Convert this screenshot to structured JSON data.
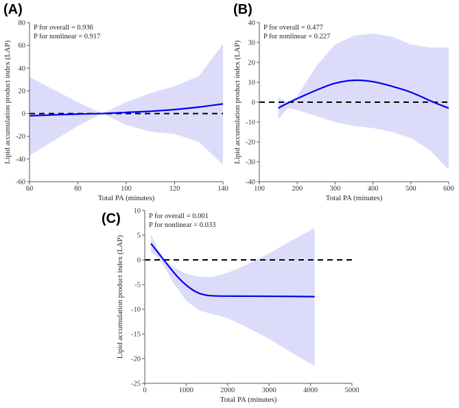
{
  "colors": {
    "line": "#0000ee",
    "band": "#dcdcfa",
    "ref": "#000000",
    "axis": "#555555"
  },
  "chart_data": [
    {
      "type": "line",
      "panel_label": "(A)",
      "xlabel": "Total PA (minutes)",
      "ylabel": "Lipid accumulation product index (LAP)",
      "annotations": [
        "P for overall = 0.936",
        "P for nonlinear = 0.917"
      ],
      "xlim": [
        60,
        140
      ],
      "ylim": [
        -60,
        80
      ],
      "xticks": [
        60,
        80,
        100,
        120,
        140
      ],
      "yticks": [
        -60,
        -40,
        -20,
        0,
        20,
        40,
        60,
        80
      ],
      "reference_y": 0,
      "series": [
        {
          "name": "estimate",
          "x": [
            60,
            70,
            80,
            90,
            100,
            110,
            120,
            130,
            140
          ],
          "y": [
            -2,
            -1.2,
            -0.5,
            0,
            1,
            2,
            3.5,
            5.7,
            8.5
          ]
        },
        {
          "name": "upper_ci",
          "x": [
            60,
            70,
            80,
            90,
            100,
            110,
            120,
            130,
            140
          ],
          "y": [
            32,
            21,
            10,
            0,
            10,
            18,
            24,
            33,
            61
          ]
        },
        {
          "name": "lower_ci",
          "x": [
            60,
            70,
            80,
            90,
            100,
            110,
            120,
            130,
            140
          ],
          "y": [
            -37,
            -24,
            -11,
            0,
            -10,
            -16,
            -18,
            -25,
            -45
          ]
        }
      ]
    },
    {
      "type": "line",
      "panel_label": "(B)",
      "xlabel": "Total PA (minutes)",
      "ylabel": "Lipid accumulation product index (LAP)",
      "annotations": [
        "P for overall = 0.477",
        "P for nonlinear = 0.227"
      ],
      "xlim": [
        100,
        600
      ],
      "ylim": [
        -40,
        40
      ],
      "xticks": [
        100,
        200,
        300,
        400,
        500,
        600
      ],
      "yticks": [
        -40,
        -30,
        -20,
        -10,
        0,
        10,
        20,
        30,
        40
      ],
      "reference_y": 0,
      "series": [
        {
          "name": "estimate",
          "x": [
            150,
            180,
            250,
            300,
            350,
            400,
            450,
            500,
            560,
            600
          ],
          "y": [
            -3,
            0,
            6,
            9.5,
            11,
            10.3,
            8,
            5,
            0,
            -3
          ]
        },
        {
          "name": "upper_ci",
          "x": [
            150,
            175,
            200,
            250,
            300,
            350,
            400,
            450,
            500,
            550,
            600
          ],
          "y": [
            2.5,
            0,
            3,
            18,
            29,
            33.5,
            34.5,
            33,
            29,
            27.5,
            27.5
          ]
        },
        {
          "name": "lower_ci",
          "x": [
            150,
            175,
            200,
            250,
            300,
            350,
            400,
            450,
            500,
            550,
            600
          ],
          "y": [
            -8.5,
            -3,
            -4,
            -7,
            -10,
            -12,
            -13,
            -15,
            -18,
            -24,
            -34
          ]
        }
      ]
    },
    {
      "type": "line",
      "panel_label": "(C)",
      "xlabel": "Total PA (minutes)",
      "ylabel": "Lipid accumulation product index (LAP)",
      "annotations": [
        "P for overall = 0.001",
        "P for nonlinear = 0.033"
      ],
      "xlim": [
        0,
        5000
      ],
      "ylim": [
        -25,
        10
      ],
      "xticks": [
        0,
        1000,
        2000,
        3000,
        4000,
        5000
      ],
      "yticks": [
        -25,
        -20,
        -15,
        -10,
        -5,
        0,
        5,
        10
      ],
      "reference_y": 0,
      "series": [
        {
          "name": "estimate",
          "x": [
            150,
            300,
            450,
            600,
            800,
            1000,
            1200,
            1400,
            1700,
            2500,
            3500,
            4100
          ],
          "y": [
            3.3,
            1.7,
            0.1,
            -1.5,
            -3.5,
            -5.1,
            -6.3,
            -7,
            -7.3,
            -7.35,
            -7.4,
            -7.45
          ]
        },
        {
          "name": "upper_ci",
          "x": [
            150,
            300,
            450,
            700,
            1000,
            1300,
            1600,
            2000,
            2500,
            3000,
            3500,
            4100
          ],
          "y": [
            5.2,
            2.5,
            0.3,
            -1.5,
            -2.8,
            -3.4,
            -3.5,
            -2.6,
            -0.8,
            1.3,
            3.7,
            6.5
          ]
        },
        {
          "name": "lower_ci",
          "x": [
            150,
            300,
            450,
            700,
            1000,
            1300,
            1600,
            2000,
            2500,
            3000,
            3500,
            4100
          ],
          "y": [
            1.5,
            0.6,
            -1,
            -4.8,
            -8.3,
            -10.2,
            -10.9,
            -11.8,
            -13.8,
            -16,
            -18.6,
            -21.5
          ]
        }
      ]
    }
  ]
}
